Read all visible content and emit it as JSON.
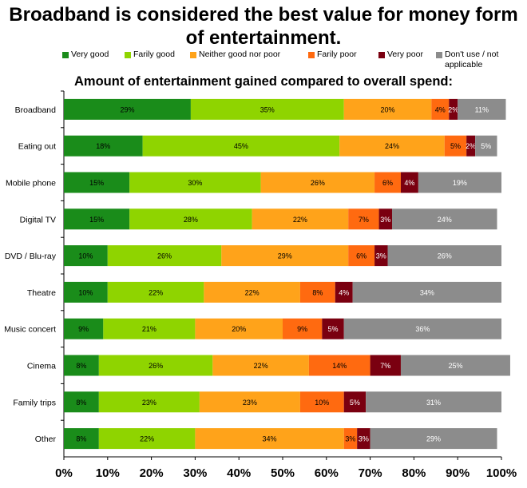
{
  "title": "Broadband is considered the best value for money form of entertainment.",
  "subtitle": "Amount of entertainment gained compared to overall spend:",
  "chart_data": {
    "type": "bar",
    "orientation": "horizontal",
    "stacked": true,
    "categories": [
      "Broadband",
      "Eating out",
      "Mobile phone",
      "Digital TV",
      "DVD / Blu-ray",
      "Theatre",
      "Music concert",
      "Cinema",
      "Family trips",
      "Other"
    ],
    "series": [
      {
        "name": "Very good",
        "color": "#1a8c1a",
        "values": [
          29,
          18,
          15,
          15,
          10,
          10,
          9,
          8,
          8,
          8
        ]
      },
      {
        "name": "Farily good",
        "color": "#8fd400",
        "values": [
          35,
          45,
          30,
          28,
          26,
          22,
          21,
          26,
          23,
          22
        ]
      },
      {
        "name": "Neither good nor poor",
        "color": "#ffa31a",
        "values": [
          20,
          24,
          26,
          22,
          29,
          22,
          20,
          22,
          23,
          34
        ]
      },
      {
        "name": "Farily poor",
        "color": "#ff6a10",
        "values": [
          4,
          5,
          6,
          7,
          6,
          8,
          9,
          14,
          10,
          3
        ]
      },
      {
        "name": "Very poor",
        "color": "#7a0010",
        "values": [
          2,
          2,
          4,
          3,
          3,
          4,
          5,
          7,
          5,
          3
        ]
      },
      {
        "name": "Don't use / not applicable",
        "color": "#8c8c8c",
        "values": [
          11,
          5,
          19,
          24,
          26,
          34,
          36,
          25,
          31,
          29
        ]
      }
    ],
    "value_format": "{v}%",
    "xlim": [
      0,
      100
    ],
    "x_ticks": [
      "0%",
      "10%",
      "20%",
      "30%",
      "40%",
      "50%",
      "60%",
      "70%",
      "80%",
      "90%",
      "100%"
    ],
    "legend_position": "top",
    "grid": false
  }
}
